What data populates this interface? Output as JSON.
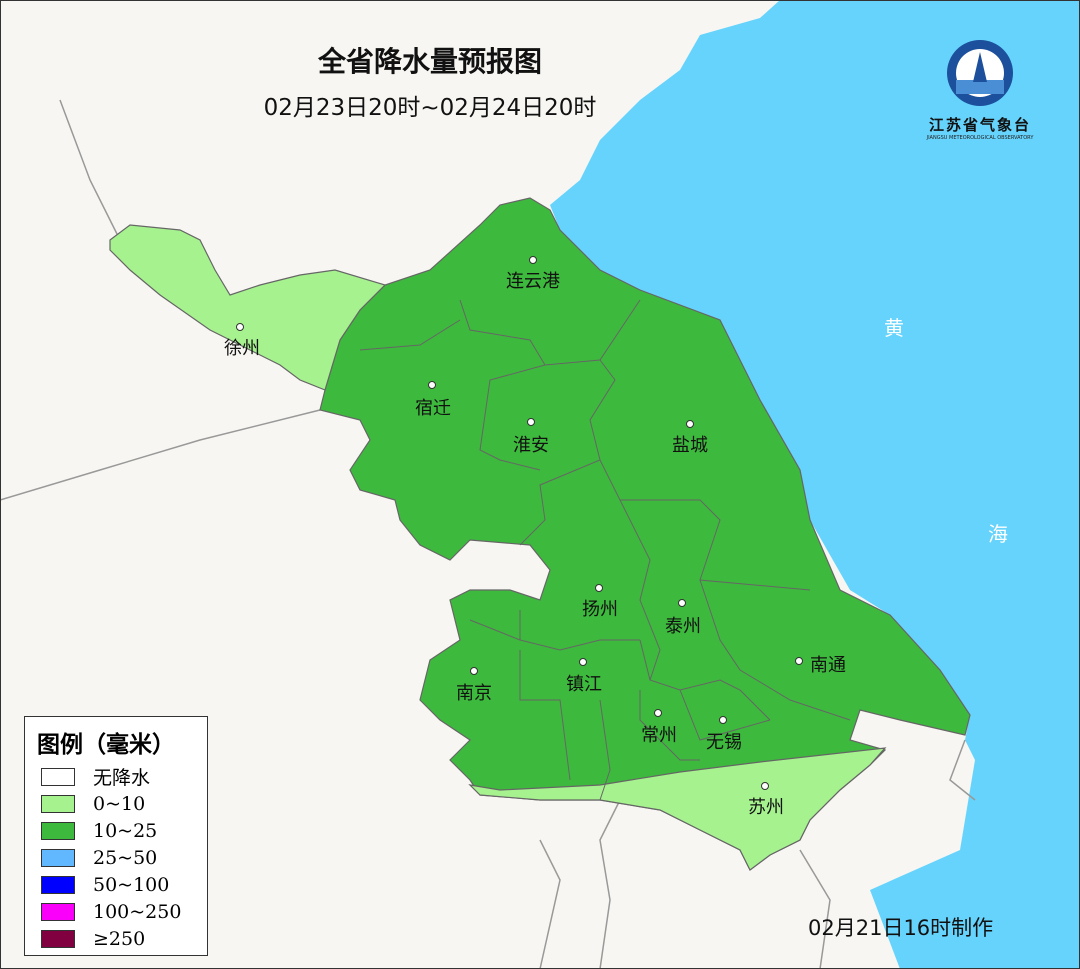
{
  "title": "全省降水量预报图",
  "period": "02月23日20时~02月24日20时",
  "logo": {
    "name": "江苏省气象台",
    "english": "JIANGSU METEOROLOGICAL OBSERVATORY"
  },
  "sea_labels": [
    "黄",
    "海"
  ],
  "cities": [
    {
      "name": "连云港",
      "category": "10~25"
    },
    {
      "name": "徐州",
      "category": "0~10"
    },
    {
      "name": "宿迁",
      "category": "10~25"
    },
    {
      "name": "淮安",
      "category": "10~25"
    },
    {
      "name": "盐城",
      "category": "10~25"
    },
    {
      "name": "扬州",
      "category": "10~25"
    },
    {
      "name": "泰州",
      "category": "10~25"
    },
    {
      "name": "南通",
      "category": "10~25"
    },
    {
      "name": "南京",
      "category": "10~25"
    },
    {
      "name": "镇江",
      "category": "10~25"
    },
    {
      "name": "常州",
      "category": "10~25"
    },
    {
      "name": "无锡",
      "category": "10~25"
    },
    {
      "name": "苏州",
      "category": "0~10"
    }
  ],
  "legend": {
    "title": "图例（毫米）",
    "items": [
      {
        "label": "无降水",
        "color": "#ffffff"
      },
      {
        "label": "0~10",
        "color": "#a6f28f"
      },
      {
        "label": "10~25",
        "color": "#3dba3d"
      },
      {
        "label": "25~50",
        "color": "#61b8ff"
      },
      {
        "label": "50~100",
        "color": "#0000fe"
      },
      {
        "label": "100~250",
        "color": "#fa00fa"
      },
      {
        "label": "≥250",
        "color": "#800040"
      }
    ]
  },
  "colors": {
    "sea": "#66d3fc",
    "land": "#f7f6f2"
  },
  "made_time": "02月21日16时制作"
}
